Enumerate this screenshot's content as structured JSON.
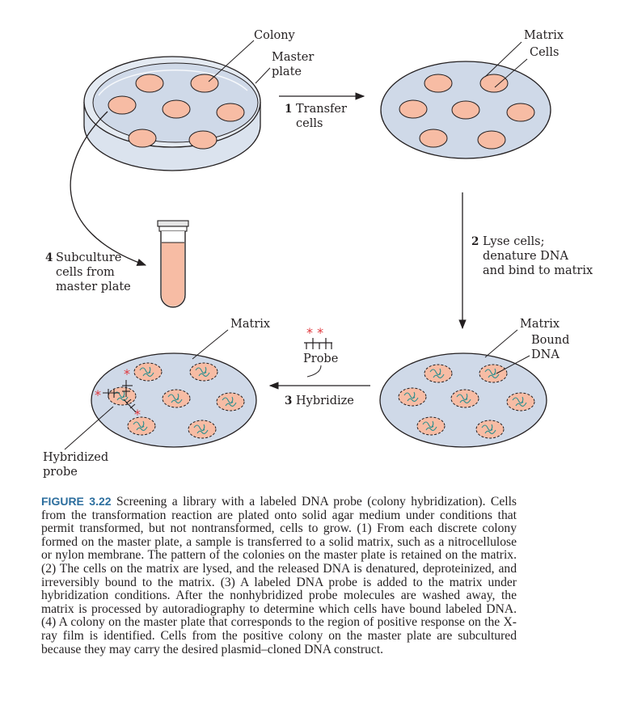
{
  "colors": {
    "colony_fill": "#f7bca4",
    "colony_stroke": "#231f20",
    "matrix_fill": "#cfd9e8",
    "dish_fill": "#dbe3ee",
    "probe_star": "#e0373c",
    "dna_strand": "#2c8f8f",
    "caption_label": "#2c6e9e"
  },
  "labels": {
    "colony": "Colony",
    "master_plate_1": "Master",
    "master_plate_2": "plate",
    "matrix_top": "Matrix",
    "cells": "Cells",
    "matrix_bottom_right": "Matrix",
    "bound_dna_1": "Bound",
    "bound_dna_2": "DNA",
    "matrix_bottom_left": "Matrix",
    "probe": "Probe",
    "probe_stars": "* *",
    "hybridized_probe_1": "Hybridized",
    "hybridized_probe_2": "probe"
  },
  "steps": [
    {
      "number": "1",
      "lines": [
        "Transfer",
        "cells"
      ]
    },
    {
      "number": "2",
      "lines": [
        "Lyse cells;",
        "denature DNA",
        "and bind to matrix"
      ]
    },
    {
      "number": "3",
      "lines": [
        "Hybridize"
      ]
    },
    {
      "number": "4",
      "lines": [
        "Subculture",
        "cells from",
        "master plate"
      ]
    }
  ],
  "caption": {
    "label": "FIGURE 3.22",
    "text": "Screening a library with a labeled DNA probe (colony hybridization). Cells from the transformation reaction are plated onto solid agar medium under conditions that permit transformed, but not nontransformed, cells to grow. (1) From each discrete colony formed on the master plate, a sample is transferred to a solid matrix, such as a nitrocellulose or nylon membrane. The pattern of the colonies on the master plate is retained on the matrix. (2) The cells on the matrix are lysed, and the released DNA is denatured, deproteinized, and irreversibly bound to the matrix. (3) A labeled DNA probe is added to the matrix under hybridization conditions. After the nonhybridized probe molecules are washed away, the matrix is processed by autoradiography to determine which cells have bound labeled DNA. (4) A colony on the master plate that corresponds to the region of positive response on the X-ray film is identified. Cells from the positive colony on the master plate are subcultured because they may carry the desired plasmid–cloned DNA construct."
  }
}
